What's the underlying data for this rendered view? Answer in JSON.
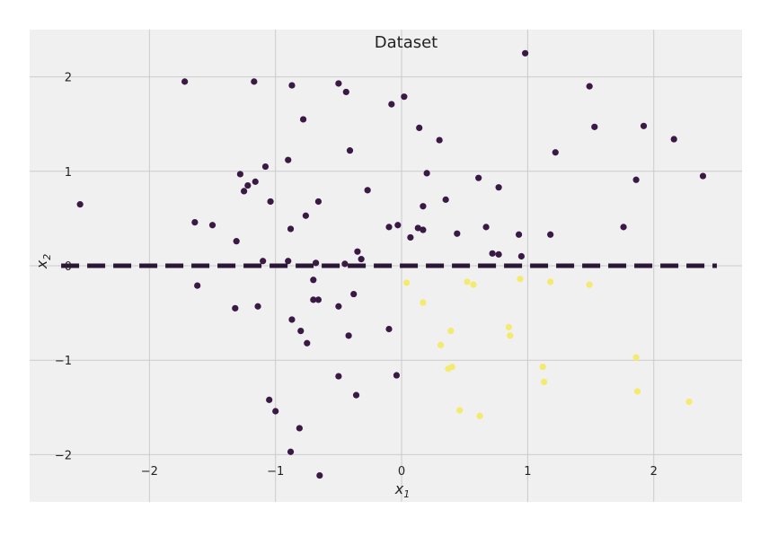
{
  "chart_data": {
    "type": "scatter",
    "title": "Dataset",
    "xlabel": "x",
    "xlabel_sub": "1",
    "ylabel": "x",
    "ylabel_sub": "2",
    "xlim": [
      -2.95,
      2.7
    ],
    "ylim": [
      -2.5,
      2.5
    ],
    "xticks": [
      -2,
      -1,
      0,
      1,
      2
    ],
    "yticks": [
      -2,
      -1,
      0,
      1,
      2
    ],
    "xtick_labels": [
      "−2",
      "−1",
      "0",
      "1",
      "2"
    ],
    "ytick_labels": [
      "−2",
      "−1",
      "0",
      "1",
      "2"
    ],
    "grid": true,
    "colors": {
      "background": "#f0f0f0",
      "grid": "#cbcbcb",
      "class_0": "#3a1a45",
      "class_1": "#f4ea6e",
      "boundary": "#2a1636"
    },
    "boundary_line": {
      "style": "dashed",
      "y": 0.0,
      "x_range": [
        -2.7,
        2.5
      ]
    },
    "series": [
      {
        "class": 0,
        "points": [
          [
            -2.55,
            0.65
          ],
          [
            -1.72,
            1.95
          ],
          [
            -1.64,
            0.46
          ],
          [
            -1.5,
            0.43
          ],
          [
            -1.62,
            -0.21
          ],
          [
            -1.17,
            1.95
          ],
          [
            -1.28,
            0.97
          ],
          [
            -1.25,
            0.79
          ],
          [
            -1.22,
            0.85
          ],
          [
            -1.16,
            0.89
          ],
          [
            -1.08,
            1.05
          ],
          [
            -1.04,
            0.68
          ],
          [
            -1.1,
            0.05
          ],
          [
            -1.31,
            0.26
          ],
          [
            -1.32,
            -0.45
          ],
          [
            -1.14,
            -0.43
          ],
          [
            -1.05,
            -1.42
          ],
          [
            -1.0,
            -1.54
          ],
          [
            -0.87,
            1.91
          ],
          [
            -0.9,
            1.12
          ],
          [
            -0.88,
            0.39
          ],
          [
            -0.76,
            0.53
          ],
          [
            -0.78,
            1.55
          ],
          [
            -0.66,
            0.68
          ],
          [
            -0.9,
            0.05
          ],
          [
            -0.68,
            0.03
          ],
          [
            -0.7,
            -0.15
          ],
          [
            -0.7,
            -0.36
          ],
          [
            -0.66,
            -0.36
          ],
          [
            -0.87,
            -0.57
          ],
          [
            -0.8,
            -0.69
          ],
          [
            -0.75,
            -0.82
          ],
          [
            -0.81,
            -1.72
          ],
          [
            -0.88,
            -1.97
          ],
          [
            -0.65,
            -2.22
          ],
          [
            -0.5,
            1.93
          ],
          [
            -0.44,
            1.84
          ],
          [
            -0.41,
            1.22
          ],
          [
            -0.27,
            0.8
          ],
          [
            -0.35,
            0.15
          ],
          [
            -0.32,
            0.07
          ],
          [
            -0.45,
            0.02
          ],
          [
            -0.38,
            -0.3
          ],
          [
            -0.5,
            -0.43
          ],
          [
            -0.42,
            -0.74
          ],
          [
            -0.36,
            -1.37
          ],
          [
            -0.5,
            -1.17
          ],
          [
            -0.08,
            1.71
          ],
          [
            0.02,
            1.79
          ],
          [
            0.14,
            1.46
          ],
          [
            0.3,
            1.33
          ],
          [
            -0.1,
            0.41
          ],
          [
            -0.03,
            0.43
          ],
          [
            0.07,
            0.3
          ],
          [
            0.13,
            0.4
          ],
          [
            0.17,
            0.38
          ],
          [
            0.17,
            0.63
          ],
          [
            0.2,
            0.98
          ],
          [
            0.35,
            0.7
          ],
          [
            0.44,
            0.34
          ],
          [
            -0.1,
            -0.67
          ],
          [
            -0.04,
            -1.16
          ],
          [
            0.61,
            0.93
          ],
          [
            0.67,
            0.41
          ],
          [
            0.72,
            0.13
          ],
          [
            0.77,
            0.12
          ],
          [
            0.77,
            0.83
          ],
          [
            0.93,
            0.33
          ],
          [
            0.95,
            0.1
          ],
          [
            0.98,
            2.25
          ],
          [
            1.18,
            0.33
          ],
          [
            1.22,
            1.2
          ],
          [
            1.49,
            1.9
          ],
          [
            1.53,
            1.47
          ],
          [
            1.76,
            0.41
          ],
          [
            1.86,
            0.91
          ],
          [
            1.92,
            1.48
          ],
          [
            2.16,
            1.34
          ],
          [
            2.39,
            0.95
          ]
        ]
      },
      {
        "class": 1,
        "points": [
          [
            0.04,
            -0.18
          ],
          [
            0.17,
            -0.39
          ],
          [
            0.31,
            -0.84
          ],
          [
            0.37,
            -1.09
          ],
          [
            0.39,
            -0.69
          ],
          [
            0.4,
            -1.07
          ],
          [
            0.46,
            -1.53
          ],
          [
            0.52,
            -0.17
          ],
          [
            0.57,
            -0.2
          ],
          [
            0.62,
            -1.59
          ],
          [
            0.85,
            -0.65
          ],
          [
            0.86,
            -0.74
          ],
          [
            0.94,
            -0.14
          ],
          [
            1.12,
            -1.07
          ],
          [
            1.13,
            -1.23
          ],
          [
            1.18,
            -0.17
          ],
          [
            1.49,
            -0.2
          ],
          [
            1.86,
            -0.97
          ],
          [
            1.87,
            -1.33
          ],
          [
            2.28,
            -1.44
          ]
        ]
      }
    ]
  }
}
